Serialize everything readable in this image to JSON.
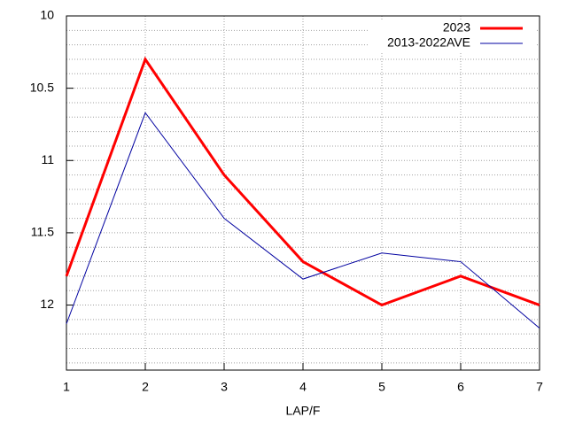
{
  "chart_data": {
    "type": "line",
    "xlabel": "LAP/F",
    "x": [
      1,
      2,
      3,
      4,
      5,
      6,
      7
    ],
    "series": [
      {
        "name": "2023",
        "color": "#ff0000",
        "values": [
          11.8,
          10.3,
          11.1,
          11.7,
          12.0,
          11.8,
          12.0
        ]
      },
      {
        "name": "2013-2022AVE",
        "color": "#0000a0",
        "values": [
          12.13,
          10.67,
          11.4,
          11.82,
          11.64,
          11.7,
          12.16
        ]
      }
    ],
    "xlim": [
      1,
      7
    ],
    "xticks": [
      1,
      2,
      3,
      4,
      5,
      6,
      7
    ],
    "ylim": [
      10,
      12.45
    ],
    "y_reversed": true,
    "yticks": [
      10,
      10.5,
      11,
      11.5,
      12
    ],
    "minor_yticks": [
      10.1,
      10.2,
      10.3,
      10.4,
      10.6,
      10.7,
      10.8,
      10.9,
      11.1,
      11.2,
      11.3,
      11.4,
      11.6,
      11.7,
      11.8,
      11.9,
      12.1,
      12.2,
      12.3,
      12.4
    ],
    "grid": true,
    "legend": "top-right"
  }
}
